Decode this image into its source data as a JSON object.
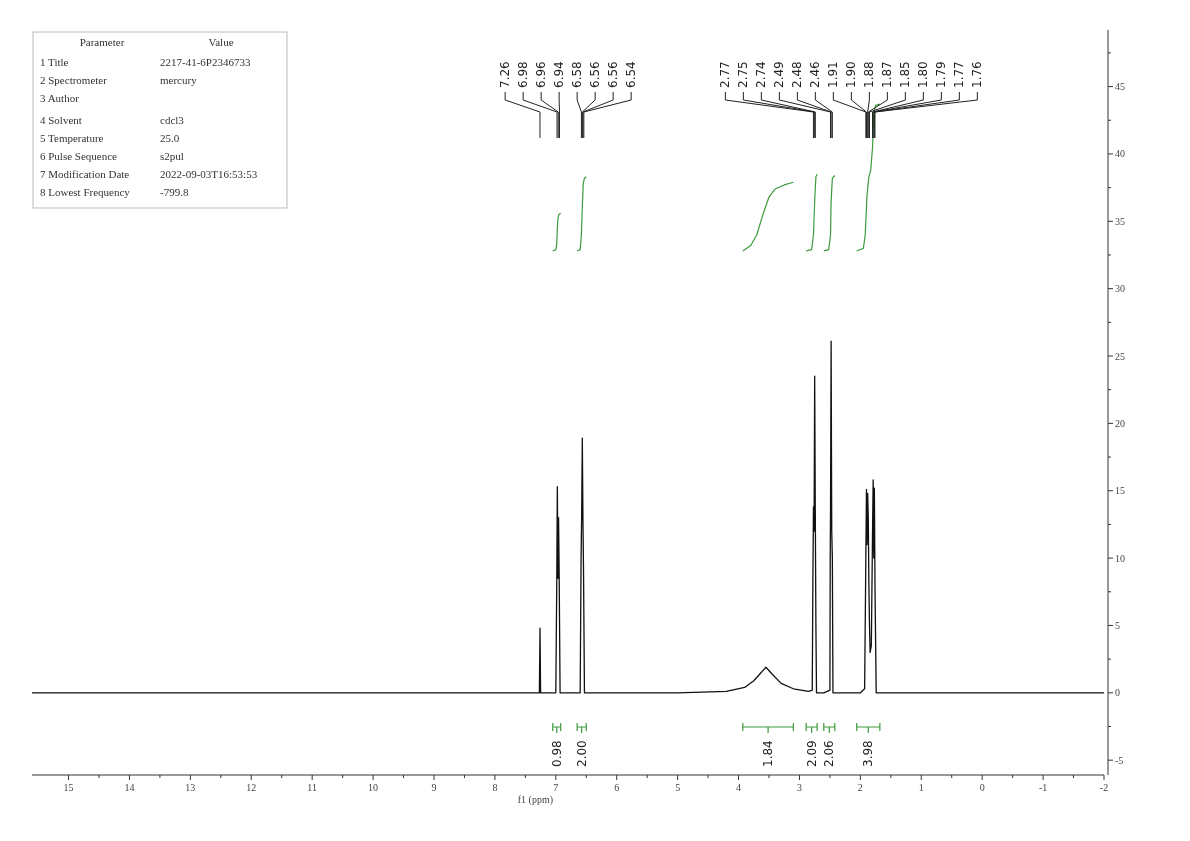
{
  "chart_data": [
    {
      "type": "other",
      "annotations": [
        "Parameter\tValue",
        "1 Title\t2217-41-6P2346733",
        "2 Spectrometer\tmercury",
        "3 Author",
        "4 Solvent\tcdcl3",
        "5 Temperature\t25.0",
        "6 Pulse Sequence\ts2pul",
        "7 Modification Date\t2022-09-03T16:53:53",
        "8 Lowest Frequency\t-799.8"
      ]
    },
    {
      "type": "line",
      "xlabel": "f1 (ppm)",
      "xlim": [
        15.6,
        -2
      ],
      "ylim": [
        -6.1,
        49.2
      ],
      "xticks": [
        15,
        {
          "value": 14.5,
          "label": null
        },
        14,
        {
          "value": 13.5,
          "label": null
        },
        13,
        {
          "value": 12.5,
          "label": null
        },
        12,
        {
          "value": 11.5,
          "label": null
        },
        11,
        {
          "value": 10.5,
          "label": null
        },
        10,
        {
          "value": 9.5,
          "label": null
        },
        9,
        {
          "value": 8.5,
          "label": null
        },
        8,
        {
          "value": 7.5,
          "label": null
        },
        7,
        {
          "value": 6.5,
          "label": null
        },
        6,
        {
          "value": 5.5,
          "label": null
        },
        5,
        {
          "value": 4.5,
          "label": null
        },
        4,
        {
          "value": 3.5,
          "label": null
        },
        3,
        {
          "value": 2.5,
          "label": null
        },
        2,
        {
          "value": 1.5,
          "label": null
        },
        1,
        {
          "value": 0.5,
          "label": null
        },
        0,
        {
          "value": -0.5,
          "label": null
        },
        -1,
        {
          "value": -1.5,
          "label": null
        },
        -2
      ],
      "yticks": [
        -5,
        {
          "value": -2.5,
          "label": null
        },
        0,
        {
          "value": 2.5,
          "label": null
        },
        5,
        {
          "value": 7.5,
          "label": null
        },
        10,
        {
          "value": 12.5,
          "label": null
        },
        15,
        {
          "value": 17.5,
          "label": null
        },
        20,
        {
          "value": 22.5,
          "label": null
        },
        25,
        {
          "value": 27.5,
          "label": null
        },
        30,
        {
          "value": 32.5,
          "label": null
        },
        35,
        {
          "value": 37.5,
          "label": null
        },
        40,
        {
          "value": 42.5,
          "label": null
        },
        45,
        {
          "value": 47.5,
          "label": null
        }
      ],
      "grid": false,
      "series": [
        {
          "color": "#111111",
          "x": [
            15.6,
            12,
            10,
            8.0,
            7.3,
            7.27,
            7.26,
            7.25,
            7.0,
            6.985,
            6.975,
            6.965,
            6.955,
            6.945,
            6.93,
            6.6,
            6.585,
            6.575,
            6.565,
            6.555,
            6.545,
            6.53,
            6.4,
            5,
            4.2,
            3.9,
            3.75,
            3.65,
            3.55,
            3.45,
            3.3,
            3.1,
            2.85,
            2.79,
            2.78,
            2.77,
            2.76,
            2.75,
            2.74,
            2.73,
            2.72,
            2.6,
            2.5,
            2.495,
            2.49,
            2.48,
            2.47,
            2.46,
            2.45,
            2.0,
            1.93,
            1.91,
            1.9,
            1.89,
            1.88,
            1.87,
            1.86,
            1.85,
            1.84,
            1.82,
            1.8,
            1.79,
            1.78,
            1.77,
            1.76,
            1.74,
            1.5,
            -2
          ],
          "values": [
            0,
            0,
            0,
            0,
            0,
            0,
            4.8,
            0,
            0,
            8,
            15.3,
            8.5,
            13,
            8.8,
            0,
            0,
            10,
            13.5,
            18.9,
            13,
            9,
            0,
            0,
            0,
            0.1,
            0.4,
            0.9,
            1.4,
            1.9,
            1.4,
            0.7,
            0.3,
            0.1,
            0.2,
            8,
            13.8,
            12,
            23.5,
            13.5,
            5,
            0,
            0,
            0.2,
            10,
            13.5,
            26.1,
            12,
            10,
            0,
            0,
            0.3,
            10,
            15.1,
            11,
            14.8,
            13,
            8,
            5,
            3,
            3.5,
            12,
            15.8,
            10,
            15.2,
            8,
            0,
            0,
            0
          ]
        },
        {
          "color": "#3c9a3c",
          "x": [
            7.05,
            7.0,
            6.985,
            6.975,
            6.965,
            6.95,
            6.92
          ],
          "values": [
            32.8,
            32.9,
            33.3,
            34.5,
            35.2,
            35.5,
            35.6
          ]
        },
        {
          "color": "#3c9a3c",
          "x": [
            6.65,
            6.6,
            6.58,
            6.565,
            6.55,
            6.53,
            6.5
          ],
          "values": [
            32.8,
            32.9,
            34,
            36,
            37.8,
            38.2,
            38.3
          ]
        },
        {
          "color": "#3c9a3c",
          "x": [
            3.93,
            3.8,
            3.7,
            3.6,
            3.5,
            3.4,
            3.25,
            3.1
          ],
          "values": [
            32.8,
            33.2,
            34,
            35.5,
            36.8,
            37.4,
            37.7,
            37.9
          ]
        },
        {
          "color": "#3c9a3c",
          "x": [
            2.89,
            2.8,
            2.77,
            2.75,
            2.73,
            2.71
          ],
          "values": [
            32.8,
            32.9,
            34,
            36.5,
            38.3,
            38.5
          ]
        },
        {
          "color": "#3c9a3c",
          "x": [
            2.6,
            2.52,
            2.49,
            2.48,
            2.46,
            2.42
          ],
          "values": [
            32.8,
            32.9,
            34,
            36.5,
            38.2,
            38.4
          ]
        },
        {
          "color": "#3c9a3c",
          "x": [
            2.06,
            1.95,
            1.92,
            1.89,
            1.86,
            1.83,
            1.8,
            1.78,
            1.75,
            1.68
          ],
          "values": [
            32.8,
            33,
            34,
            37,
            38.3,
            38.8,
            40.5,
            43,
            43.6,
            43.7
          ]
        }
      ],
      "annotations": [
        {
          "text": "7.26",
          "x": 7.26
        },
        {
          "text": "6.98",
          "x": 6.98
        },
        {
          "text": "6.96",
          "x": 6.96
        },
        {
          "text": "6.94",
          "x": 6.94
        },
        {
          "text": "6.58",
          "x": 6.58
        },
        {
          "text": "6.56",
          "x": 6.565
        },
        {
          "text": "6.56",
          "x": 6.555
        },
        {
          "text": "6.54",
          "x": 6.54
        },
        {
          "text": "2.77",
          "x": 2.77
        },
        {
          "text": "2.75",
          "x": 2.75
        },
        {
          "text": "2.74",
          "x": 2.74
        },
        {
          "text": "2.49",
          "x": 2.49
        },
        {
          "text": "2.48",
          "x": 2.48
        },
        {
          "text": "2.46",
          "x": 2.46
        },
        {
          "text": "1.91",
          "x": 1.91
        },
        {
          "text": "1.90",
          "x": 1.9
        },
        {
          "text": "1.88",
          "x": 1.88
        },
        {
          "text": "1.87",
          "x": 1.87
        },
        {
          "text": "1.85",
          "x": 1.85
        },
        {
          "text": "1.80",
          "x": 1.8
        },
        {
          "text": "1.79",
          "x": 1.79
        },
        {
          "text": "1.77",
          "x": 1.77
        },
        {
          "text": "1.76",
          "x": 1.76
        },
        "0.98",
        "2.00",
        "1.84",
        "2.09",
        "2.06",
        "3.98"
      ]
    }
  ]
}
